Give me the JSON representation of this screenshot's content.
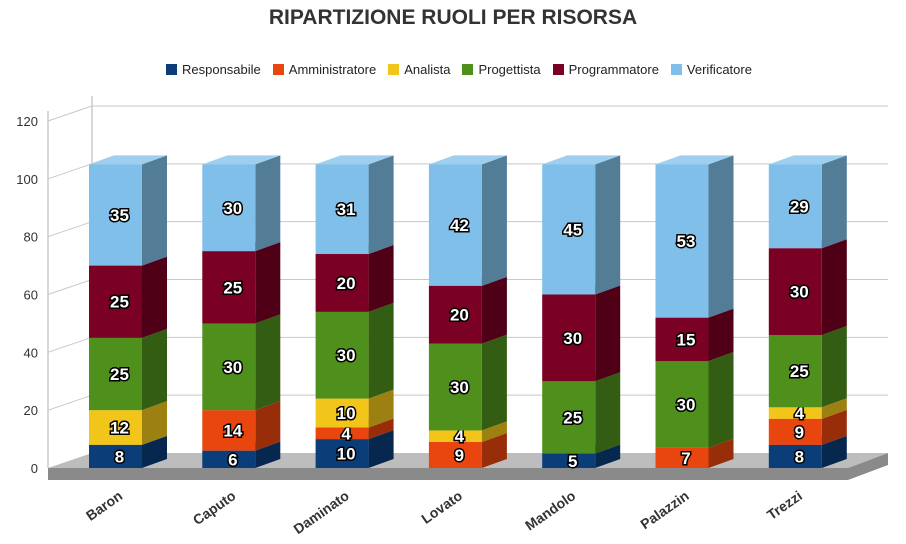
{
  "chart_data": {
    "type": "bar",
    "stacked": true,
    "three_d": true,
    "title": "RIPARTIZIONE RUOLI PER RISORSA",
    "xlabel": "",
    "ylabel": "",
    "ylim": [
      0,
      120
    ],
    "yticks": [
      0,
      20,
      40,
      60,
      80,
      100,
      120
    ],
    "grid": true,
    "legend_position": "top",
    "categories": [
      "Baron",
      "Caputo",
      "Daminato",
      "Lovato",
      "Mandolo",
      "Palazzin",
      "Trezzi"
    ],
    "series": [
      {
        "name": "Responsabile",
        "color": "#0b3d78",
        "values": [
          8,
          6,
          10,
          0,
          5,
          0,
          8
        ]
      },
      {
        "name": "Amministratore",
        "color": "#e8460e",
        "values": [
          0,
          14,
          4,
          9,
          0,
          7,
          9
        ]
      },
      {
        "name": "Analista",
        "color": "#f2c51b",
        "values": [
          12,
          0,
          10,
          4,
          0,
          0,
          4
        ]
      },
      {
        "name": "Progettista",
        "color": "#4f8f1b",
        "values": [
          25,
          30,
          30,
          30,
          25,
          30,
          25
        ]
      },
      {
        "name": "Programmatore",
        "color": "#7a0024",
        "values": [
          25,
          25,
          20,
          20,
          30,
          15,
          30
        ]
      },
      {
        "name": "Verificatore",
        "color": "#7fbfe9",
        "values": [
          35,
          30,
          31,
          42,
          45,
          53,
          29
        ]
      }
    ]
  }
}
